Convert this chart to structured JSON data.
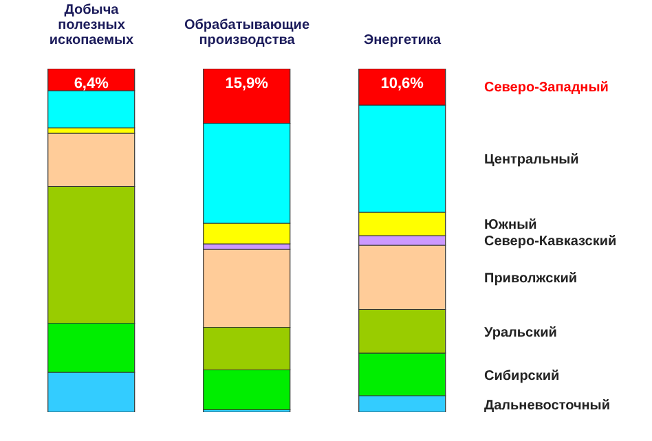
{
  "chart_data": {
    "type": "bar",
    "stacked": true,
    "categories": [
      "Добыча полезных ископаемых",
      "Обрабатывающие производства",
      "Энергетика"
    ],
    "ylim": [
      0,
      100
    ],
    "tick_labels": "x",
    "legend": false,
    "series": [
      {
        "name": "Дальневосточный",
        "color": "#33ccff",
        "values": [
          11.6,
          0.7,
          4.8
        ]
      },
      {
        "name": "Сибирский",
        "color": "#00ee00",
        "values": [
          14.3,
          11.6,
          12.4
        ]
      },
      {
        "name": "Уральский",
        "color": "#99cc00",
        "values": [
          39.8,
          12.4,
          12.7
        ]
      },
      {
        "name": "Приволжский",
        "color": "#ffcc99",
        "values": [
          15.5,
          22.7,
          18.7
        ]
      },
      {
        "name": "Северо-Кавказский",
        "color": "#cc99ff",
        "values": [
          0,
          1.6,
          2.8
        ]
      },
      {
        "name": "Южный",
        "color": "#ffff00",
        "values": [
          1.6,
          6.0,
          6.8
        ]
      },
      {
        "name": "Центральный",
        "color": "#00ffff",
        "values": [
          10.8,
          29.1,
          31.2
        ]
      },
      {
        "name": "Северо-Западный",
        "color": "#ff0000",
        "values": [
          6.4,
          15.9,
          10.6
        ],
        "value_labels": [
          "6,4%",
          "15,9%",
          "10,6%"
        ]
      }
    ]
  }
}
